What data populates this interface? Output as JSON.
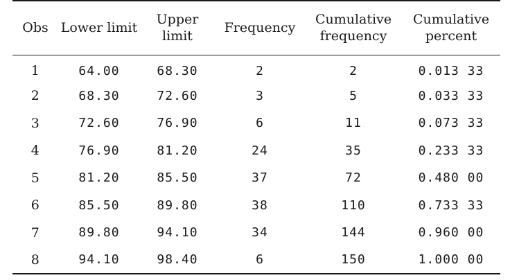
{
  "table": {
    "headers": {
      "obs": "Obs",
      "lower": "Lower limit",
      "upper_line1": "Upper",
      "upper_line2": "limit",
      "frequency": "Frequency",
      "cumfreq_line1": "Cumulative",
      "cumfreq_line2": "frequency",
      "cumpct_line1": "Cumulative",
      "cumpct_line2": "percent"
    },
    "rows": [
      {
        "obs": "1",
        "lower": "64.00",
        "upper": "68.30",
        "frequency": "2",
        "cumfreq": "2",
        "cumpct": "0.013 33"
      },
      {
        "obs": "2",
        "lower": "68.30",
        "upper": "72.60",
        "frequency": "3",
        "cumfreq": "5",
        "cumpct": "0.033 33"
      },
      {
        "obs": "3",
        "lower": "72.60",
        "upper": "76.90",
        "frequency": "6",
        "cumfreq": "11",
        "cumpct": "0.073 33"
      },
      {
        "obs": "4",
        "lower": "76.90",
        "upper": "81.20",
        "frequency": "24",
        "cumfreq": "35",
        "cumpct": "0.233 33"
      },
      {
        "obs": "5",
        "lower": "81.20",
        "upper": "85.50",
        "frequency": "37",
        "cumfreq": "72",
        "cumpct": "0.480 00"
      },
      {
        "obs": "6",
        "lower": "85.50",
        "upper": "89.80",
        "frequency": "38",
        "cumfreq": "110",
        "cumpct": "0.733 33"
      },
      {
        "obs": "7",
        "lower": "89.80",
        "upper": "94.10",
        "frequency": "34",
        "cumfreq": "144",
        "cumpct": "0.960 00"
      },
      {
        "obs": "8",
        "lower": "94.10",
        "upper": "98.40",
        "frequency": "6",
        "cumfreq": "150",
        "cumpct": "1.000 00"
      }
    ]
  }
}
